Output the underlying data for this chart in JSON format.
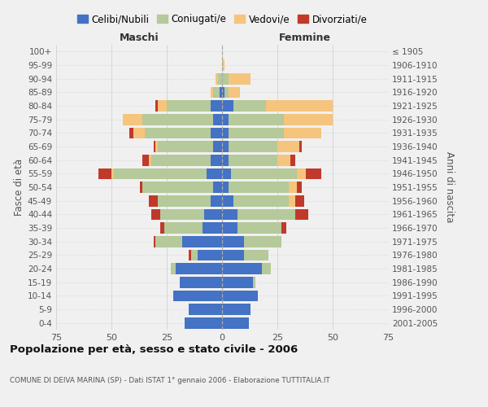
{
  "age_groups": [
    "0-4",
    "5-9",
    "10-14",
    "15-19",
    "20-24",
    "25-29",
    "30-34",
    "35-39",
    "40-44",
    "45-49",
    "50-54",
    "55-59",
    "60-64",
    "65-69",
    "70-74",
    "75-79",
    "80-84",
    "85-89",
    "90-94",
    "95-99",
    "100+"
  ],
  "birth_years": [
    "2001-2005",
    "1996-2000",
    "1991-1995",
    "1986-1990",
    "1981-1985",
    "1976-1980",
    "1971-1975",
    "1966-1970",
    "1961-1965",
    "1956-1960",
    "1951-1955",
    "1946-1950",
    "1941-1945",
    "1936-1940",
    "1931-1935",
    "1926-1930",
    "1921-1925",
    "1916-1920",
    "1911-1915",
    "1906-1910",
    "≤ 1905"
  ],
  "maschi": {
    "celibi": [
      17,
      15,
      22,
      19,
      21,
      11,
      18,
      9,
      8,
      5,
      4,
      7,
      5,
      4,
      5,
      4,
      5,
      1,
      0,
      0,
      0
    ],
    "coniugati": [
      0,
      0,
      0,
      0,
      2,
      3,
      12,
      17,
      20,
      24,
      32,
      42,
      27,
      25,
      30,
      32,
      20,
      3,
      2,
      0,
      0
    ],
    "vedovi": [
      0,
      0,
      0,
      0,
      0,
      0,
      0,
      0,
      0,
      0,
      0,
      1,
      1,
      1,
      5,
      9,
      4,
      1,
      1,
      0,
      0
    ],
    "divorziati": [
      0,
      0,
      0,
      0,
      0,
      1,
      1,
      2,
      4,
      4,
      1,
      6,
      3,
      1,
      2,
      0,
      1,
      0,
      0,
      0,
      0
    ]
  },
  "femmine": {
    "nubili": [
      12,
      13,
      16,
      14,
      18,
      10,
      10,
      7,
      7,
      5,
      3,
      4,
      3,
      3,
      3,
      3,
      5,
      1,
      0,
      0,
      0
    ],
    "coniugate": [
      0,
      0,
      0,
      1,
      4,
      11,
      17,
      20,
      26,
      25,
      27,
      30,
      22,
      22,
      25,
      25,
      15,
      2,
      3,
      0,
      0
    ],
    "vedove": [
      0,
      0,
      0,
      0,
      0,
      0,
      0,
      0,
      0,
      3,
      4,
      4,
      6,
      10,
      17,
      22,
      30,
      5,
      10,
      1,
      0
    ],
    "divorziate": [
      0,
      0,
      0,
      0,
      0,
      0,
      0,
      2,
      6,
      4,
      2,
      7,
      2,
      1,
      0,
      0,
      0,
      0,
      0,
      0,
      0
    ]
  },
  "colors": {
    "celibi": "#4472c4",
    "coniugati": "#b5c99a",
    "vedovi": "#f5c47d",
    "divorziati": "#c0392b"
  },
  "xlim": 75,
  "xticks": [
    -75,
    -50,
    -25,
    0,
    25,
    50,
    75
  ],
  "xticklabels": [
    "75",
    "50",
    "25",
    "0",
    "25",
    "50",
    "75"
  ],
  "background_color": "#f0f0f0",
  "grid_color": "#cccccc",
  "title": "Popolazione per età, sesso e stato civile - 2006",
  "subtitle": "COMUNE DI DEIVA MARINA (SP) - Dati ISTAT 1° gennaio 2006 - Elaborazione TUTTITALIA.IT",
  "xlabel_left": "Maschi",
  "xlabel_right": "Femmine",
  "ylabel_left": "Fasce di età",
  "ylabel_right": "Anni di nascita",
  "legend_labels": [
    "Celibi/Nubili",
    "Coniugati/e",
    "Vedovi/e",
    "Divorziati/e"
  ]
}
